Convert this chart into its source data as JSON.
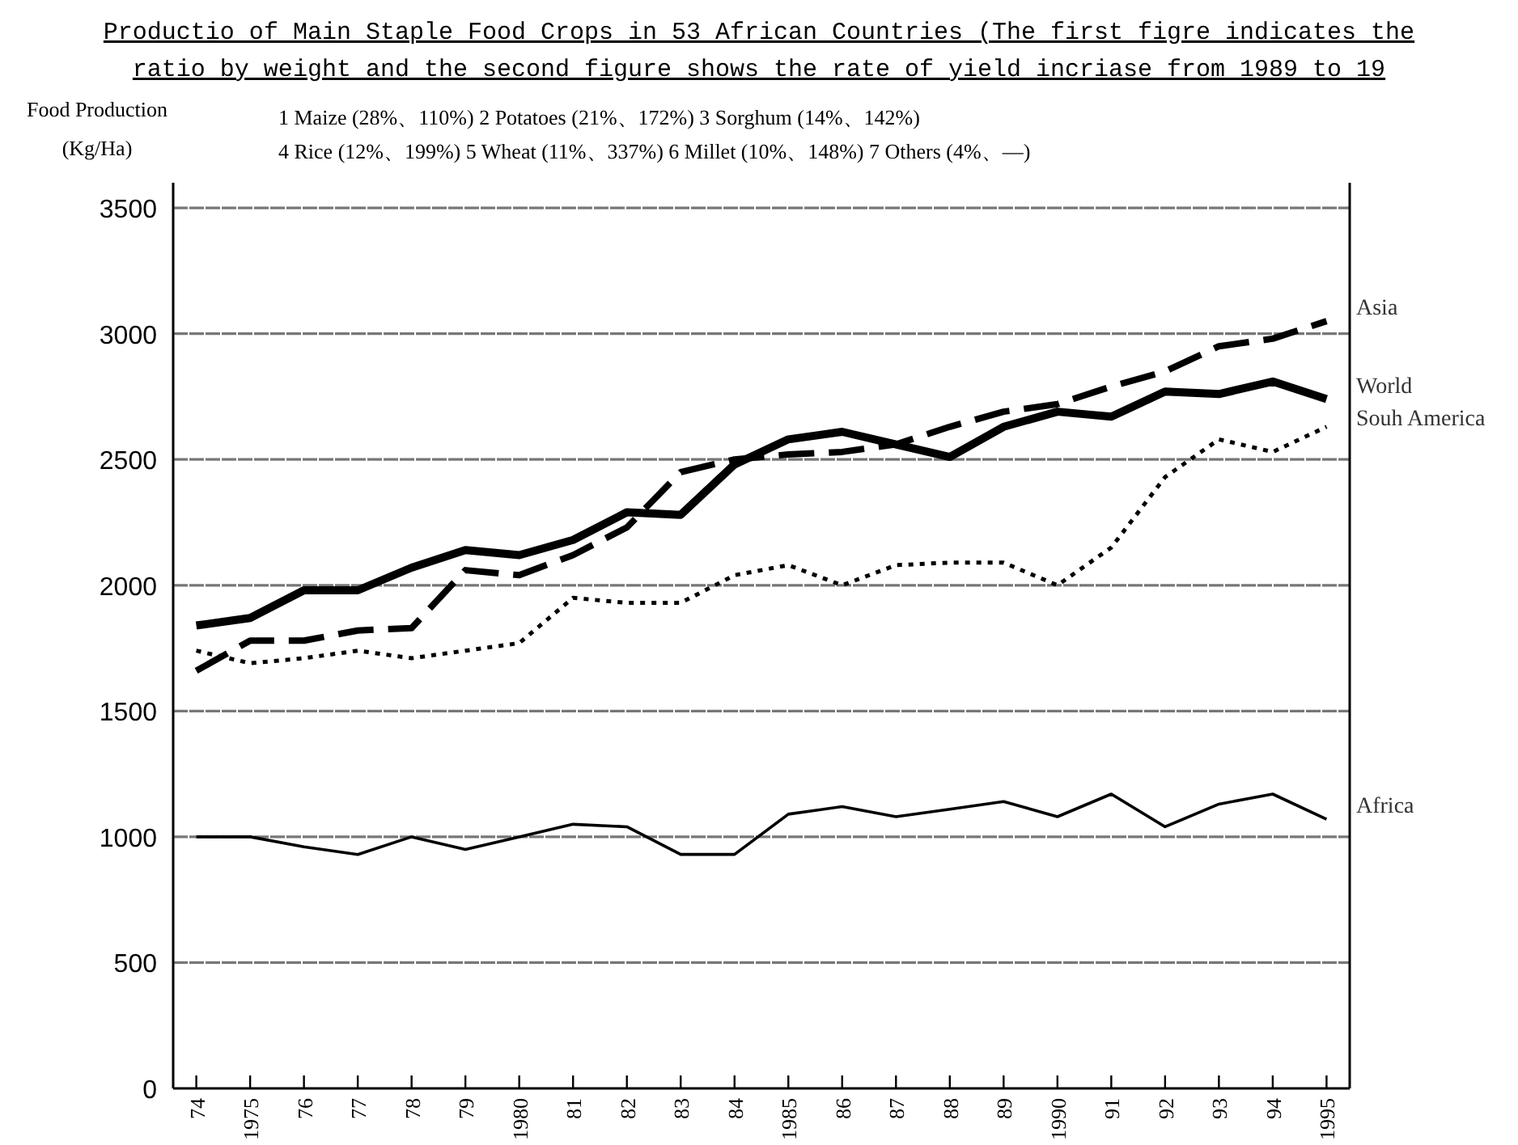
{
  "chart_data": {
    "type": "line",
    "title": "Productio of Main Staple Food Crops in 53 African Countries (The first figre indicates the ratio by weight and the second figure shows the rate of yield incriase from 1989 to 19",
    "ylabel": "Food Production (Kg/Ha)",
    "annotations": [
      "1 Maize (28%、110%) 2 Potatoes (21%、172%) 3 Sorghum (14%、142%)",
      "4 Rice (12%、199%) 5 Wheat (11%、337%) 6 Millet (10%、148%) 7 Others (4%、—)"
    ],
    "categories": [
      "74",
      "1975",
      "76",
      "77",
      "78",
      "79",
      "1980",
      "81",
      "82",
      "83",
      "84",
      "1985",
      "86",
      "87",
      "88",
      "89",
      "1990",
      "91",
      "92",
      "93",
      "94",
      "1995"
    ],
    "series": [
      {
        "name": "Asia",
        "color": "#000000",
        "line_style": "dashed",
        "values": [
          1660,
          1780,
          1780,
          1820,
          1830,
          2060,
          2040,
          2120,
          2230,
          2450,
          2500,
          2520,
          2530,
          2560,
          2630,
          2690,
          2720,
          2790,
          2850,
          2950,
          2980,
          3050
        ]
      },
      {
        "name": "World",
        "color": "#000000",
        "line_style": "solid",
        "values": [
          1840,
          1870,
          1980,
          1980,
          2070,
          2140,
          2120,
          2180,
          2290,
          2280,
          2480,
          2580,
          2610,
          2560,
          2510,
          2630,
          2690,
          2670,
          2770,
          2760,
          2810,
          2740
        ]
      },
      {
        "name": "Souh America",
        "color": "#000000",
        "line_style": "dotted",
        "values": [
          1740,
          1690,
          1710,
          1740,
          1710,
          1740,
          1770,
          1950,
          1930,
          1930,
          2040,
          2080,
          2000,
          2080,
          2090,
          2090,
          2000,
          2150,
          2430,
          2580,
          2530,
          2630
        ]
      },
      {
        "name": "Africa",
        "color": "#000000",
        "line_style": "solid",
        "values": [
          1000,
          1000,
          960,
          930,
          1000,
          950,
          1000,
          1050,
          1040,
          930,
          930,
          1090,
          1120,
          1080,
          1110,
          1140,
          1080,
          1170,
          1040,
          1130,
          1170,
          1070
        ]
      }
    ],
    "ylim": [
      0,
      3600
    ],
    "yticks": [
      0,
      500,
      1000,
      1500,
      2000,
      2500,
      3000,
      3500
    ],
    "grid": "y",
    "legend": false,
    "marker": "none"
  }
}
